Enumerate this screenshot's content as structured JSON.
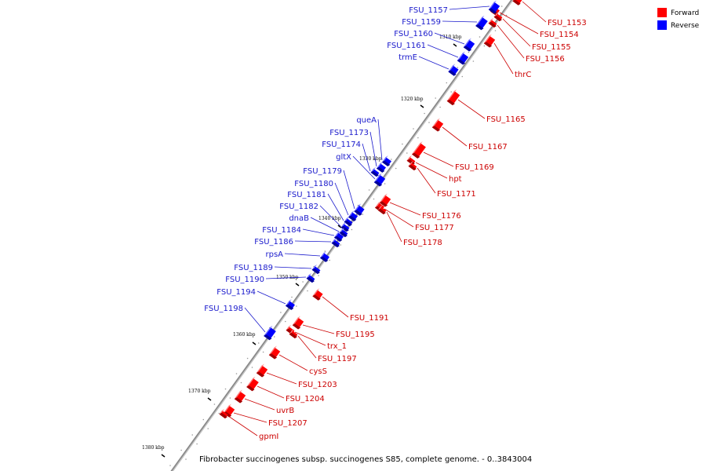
{
  "colors": {
    "forward": "#ff0000",
    "reverse": "#0000ff",
    "forward_label": "#cc0000",
    "reverse_label": "#1a1acc",
    "backbone": "#888888"
  },
  "legend": [
    {
      "label": "Forward",
      "strand": "forward"
    },
    {
      "label": "Reverse",
      "strand": "reverse"
    }
  ],
  "caption": "Fibrobacter succinogenes subsp. succinogenes S85, complete genome. - 0..3843004",
  "ticks": [
    "1310 kbp",
    "1320 kbp",
    "1330 kbp",
    "1340 kbp",
    "1350 kbp",
    "1360 kbp",
    "1370 kbp",
    "1380 kbp"
  ],
  "forward_genes": [
    "FSU_1153",
    "FSU_1154",
    "FSU_1155",
    "FSU_1156",
    "thrC",
    "FSU_1165",
    "FSU_1167",
    "FSU_1169",
    "hpt",
    "FSU_1171",
    "FSU_1176",
    "FSU_1177",
    "FSU_1178",
    "FSU_1191",
    "FSU_1195",
    "trx_1",
    "FSU_1197",
    "cysS",
    "FSU_1203",
    "FSU_1204",
    "uvrB",
    "FSU_1207",
    "gpmI"
  ],
  "reverse_genes": [
    "FSU_1157",
    "FSU_1159",
    "FSU_1160",
    "FSU_1161",
    "trmE",
    "queA",
    "FSU_1173",
    "FSU_1174",
    "gltX",
    "FSU_1179",
    "FSU_1180",
    "FSU_1181",
    "FSU_1182",
    "dnaB",
    "FSU_1184",
    "FSU_1186",
    "rpsA",
    "FSU_1189",
    "FSU_1190",
    "FSU_1194",
    "FSU_1198"
  ]
}
